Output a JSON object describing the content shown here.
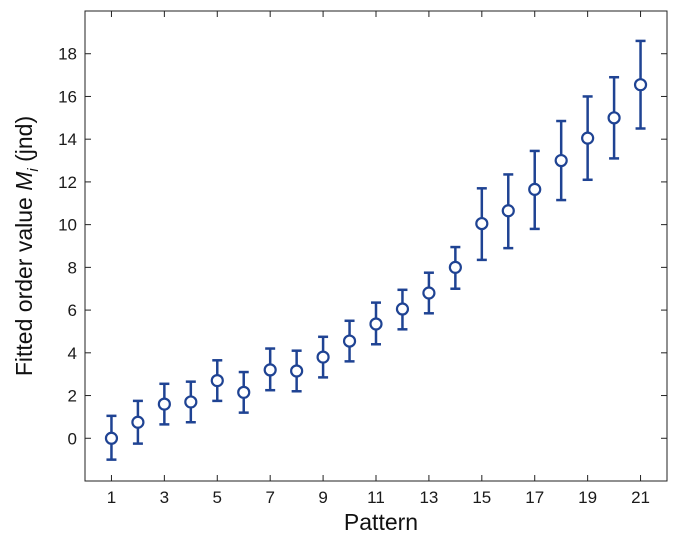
{
  "chart_data": {
    "type": "scatter",
    "title": "",
    "xlabel": "Pattern",
    "ylabel_main": "Fitted order value ",
    "ylabel_var": "M",
    "ylabel_sub": "i",
    "ylabel_unit": " (jnd)",
    "xlim": [
      0,
      22
    ],
    "ylim": [
      -2,
      20
    ],
    "xticks": [
      1,
      3,
      5,
      7,
      9,
      11,
      13,
      15,
      17,
      19,
      21
    ],
    "yticks": [
      0,
      2,
      4,
      6,
      8,
      10,
      12,
      14,
      16,
      18
    ],
    "grid": false,
    "series": [
      {
        "x": [
          1,
          2,
          3,
          4,
          5,
          6,
          7,
          8,
          9,
          10,
          11,
          12,
          13,
          14,
          15,
          16,
          17,
          18,
          19,
          20,
          21
        ],
        "y": [
          0,
          0.75,
          1.6,
          1.7,
          2.7,
          2.15,
          3.2,
          3.15,
          3.8,
          4.55,
          5.35,
          6.05,
          6.8,
          8.0,
          10.05,
          10.65,
          11.65,
          13.0,
          14.05,
          15.0,
          16.55
        ],
        "err_low": [
          -1.0,
          -0.25,
          0.65,
          0.75,
          1.75,
          1.2,
          2.25,
          2.2,
          2.85,
          3.6,
          4.4,
          5.1,
          5.85,
          7.0,
          8.35,
          8.9,
          9.8,
          11.15,
          12.1,
          13.1,
          14.5
        ],
        "err_high": [
          1.05,
          1.75,
          2.55,
          2.65,
          3.65,
          3.1,
          4.2,
          4.1,
          4.75,
          5.5,
          6.35,
          6.95,
          7.75,
          8.95,
          11.7,
          12.35,
          13.45,
          14.85,
          16.0,
          16.9,
          18.6
        ]
      }
    ],
    "marker_color": "#1f4393",
    "marker_fill": "#ffffff"
  }
}
